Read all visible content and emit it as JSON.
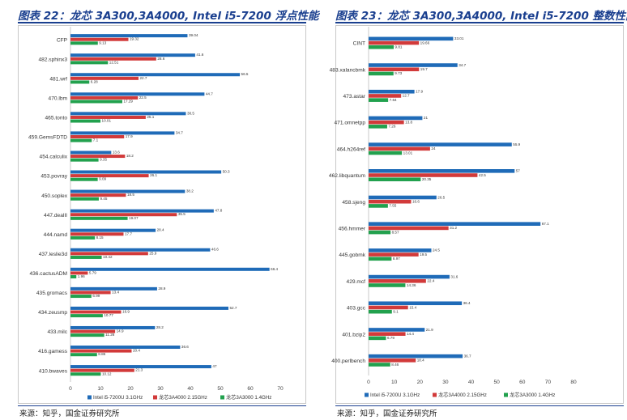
{
  "colors": {
    "intel": "#1f6bb8",
    "lx3a4000": "#d23a3a",
    "lx3a3000": "#22a14e",
    "title": "#1a3f8f"
  },
  "left": {
    "title": "图表 22：龙芯 3A300,3A4000, Intel i5-7200 浮点性能",
    "source": "来源：知乎，国金证券研究所"
  },
  "right": {
    "title": "图表 23：龙芯 3A300,3A4000, Intel i5-7200 整数性能",
    "source": "来源：知乎，国金证券研究所"
  },
  "chart_data": [
    {
      "type": "bar",
      "orientation": "horizontal",
      "categories": [
        "CFP",
        "482.sphinx3",
        "481.wrf",
        "470.lbm",
        "465.tonto",
        "459.GemsFDTD",
        "454.calculix",
        "453.povray",
        "450.soplex",
        "447.dealII",
        "444.namd",
        "437.leslie3d",
        "436.cactusADM",
        "435.gromacs",
        "434.zeusmp",
        "433.milc",
        "416.gamess",
        "410.bwaves"
      ],
      "series": [
        {
          "name": "Intel i5-7200U 3.1GHz",
          "values": [
            39.04,
            41.6,
            56.5,
            44.7,
            38.5,
            34.7,
            13.6,
            50.3,
            38.2,
            47.8,
            28.4,
            46.6,
            66.4,
            28.9,
            52.7,
            28.2,
            36.6,
            47
          ]
        },
        {
          "name": "龙芯3A4000 2.15GHz",
          "values": [
            19.32,
            28.6,
            22.7,
            22.5,
            25.1,
            17.9,
            18.2,
            26.1,
            18.5,
            35.5,
            17.7,
            25.9,
            5.79,
            13.4,
            16.9,
            14.9,
            20.4,
            21.3
          ]
        },
        {
          "name": "龙芯3A3000 1.4GHz",
          "values": [
            9.13,
            12.51,
            6.28,
            17.29,
            10.01,
            7.1,
            9.35,
            9.09,
            9.45,
            19.07,
            8.15,
            10.42,
            1.96,
            6.99,
            10.77,
            11.26,
            8.86,
            10.12
          ]
        }
      ],
      "data_labels": [
        [
          "39.04",
          "41.6",
          "56.5",
          "44.7",
          "38.5",
          "34.7",
          "13.6",
          "50.3",
          "38.2",
          "47.8",
          "28.4",
          "46.6",
          "66.4",
          "28.9",
          "52.7",
          "28.2",
          "36.6",
          "47"
        ],
        [
          "19.32",
          "28.6",
          "22.7",
          "22.5",
          "25.1",
          "17.9",
          "18.2",
          "26.1",
          "18.5",
          "35.5",
          "17.7",
          "25.9",
          "5.79",
          "13.4",
          "16.9",
          "14.9",
          "20.4",
          "21.3"
        ],
        [
          "9.13",
          "12.51",
          "6.28",
          "17.29",
          "10.01",
          "7.1",
          "9.35",
          "9.09",
          "9.45",
          "19.07",
          "8.15",
          "10.42",
          "1.96",
          "6.99",
          "10.77",
          "11.26",
          "8.86",
          "10.12"
        ]
      ],
      "xlim": [
        0,
        70
      ],
      "xticks": [
        "0",
        "10",
        "20",
        "30",
        "40",
        "50",
        "60",
        "70"
      ],
      "grid": false,
      "legend_position": "bottom"
    },
    {
      "type": "bar",
      "orientation": "horizontal",
      "categories": [
        "CINT",
        "483.xalancbmk",
        "473.astar",
        "471.omnetpp",
        "464.h264ref",
        "462.libquantum",
        "458.sjeng",
        "456.hmmer",
        "445.gobmk",
        "429.mcf",
        "403.gcc",
        "401.bzip2",
        "400.perlbench"
      ],
      "series": [
        {
          "name": "Intel i5-7200U 3.1GHz",
          "values": [
            33.01,
            34.7,
            17.9,
            21,
            55.9,
            57,
            26.5,
            67.1,
            24.5,
            31.6,
            36.4,
            21.9,
            36.7
          ]
        },
        {
          "name": "龙芯3A4000 2.15GHz",
          "values": [
            19.66,
            19.7,
            12.7,
            13.8,
            24,
            42.5,
            16.6,
            31.2,
            19.5,
            22.4,
            15.4,
            14.4,
            18.4
          ]
        },
        {
          "name": "龙芯3A3000 1.4GHz",
          "values": [
            9.81,
            9.73,
            7.64,
            7.26,
            13.01,
            20.35,
            7.55,
            8.57,
            8.97,
            14.36,
            9.1,
            6.79,
            8.46
          ]
        }
      ],
      "data_labels": [
        [
          "33.01",
          "34.7",
          "17.9",
          "21",
          "55.9",
          "57",
          "26.5",
          "67.1",
          "24.5",
          "31.6",
          "36.4",
          "21.9",
          "36.7"
        ],
        [
          "19.66",
          "19.7",
          "12.7",
          "13.8",
          "24",
          "42.5",
          "16.6",
          "31.2",
          "19.5",
          "22.4",
          "15.4",
          "14.4",
          "18.4"
        ],
        [
          "9.81",
          "9.73",
          "7.64",
          "7.26",
          "13.01",
          "20.35",
          "7.55",
          "8.57",
          "8.97",
          "14.36",
          "9.1",
          "6.79",
          "8.46"
        ]
      ],
      "xlim": [
        0,
        80
      ],
      "xticks": [
        "0",
        "10",
        "20",
        "30",
        "40",
        "50",
        "60",
        "70",
        "80"
      ],
      "grid": false,
      "legend_position": "bottom"
    }
  ]
}
